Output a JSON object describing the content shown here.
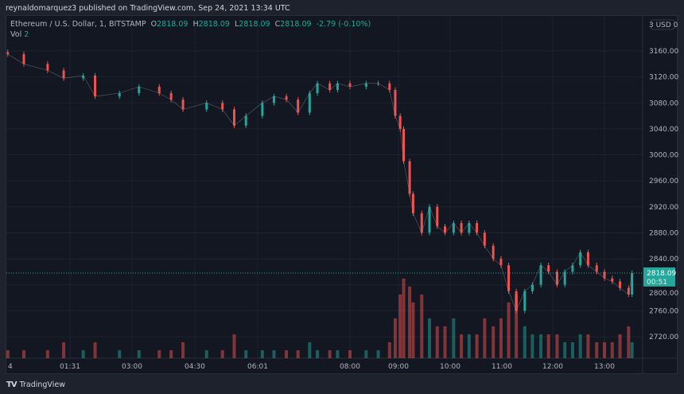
{
  "header": {
    "published": "reynaldomarquez3 published on TradingView.com, Sep 24, 2021 13:34 UTC"
  },
  "legend": {
    "symbol": "Ethereum / U.S. Dollar, 1, BITSTAMP",
    "o_label": "O",
    "o": "2818.09",
    "h_label": "H",
    "h": "2818.09",
    "l_label": "L",
    "l": "2818.09",
    "c_label": "C",
    "c": "2818.09",
    "change": "-2.79 (-0.10%)",
    "vol_label": "Vol",
    "vol": "2"
  },
  "price_axis": {
    "currency_badge": "3 USD 0",
    "last_price": "2818.09",
    "countdown": "00:51"
  },
  "brand": {
    "logo": "TV",
    "name": "TradingView"
  },
  "colors": {
    "up": "#26a69a",
    "down": "#ef5350",
    "background": "#131722",
    "grid": "#1e222d"
  },
  "chart_data": {
    "type": "candlestick",
    "title": "Ethereum / U.S. Dollar, 1, BITSTAMP",
    "ylim": [
      2695,
      3190
    ],
    "yticks": [
      "3160.00",
      "3120.00",
      "3080.00",
      "3040.00",
      "3000.00",
      "2960.00",
      "2920.00",
      "2880.00",
      "2840.00",
      "2800.00",
      "2760.00",
      "2720.00"
    ],
    "xticks": [
      "4",
      "01:31",
      "03:00",
      "04:30",
      "06:01",
      "08:00",
      "09:00",
      "10:00",
      "11:00",
      "12:00",
      "13:00"
    ],
    "grid": true,
    "last_price": 2818.09,
    "points": [
      [
        "00:02",
        3155,
        1
      ],
      [
        "00:25",
        3140,
        1
      ],
      [
        "00:59",
        3130,
        1
      ],
      [
        "01:22",
        3118,
        2
      ],
      [
        "01:50",
        3122,
        1
      ],
      [
        "02:07",
        3090,
        2
      ],
      [
        "02:42",
        3095,
        1
      ],
      [
        "03:10",
        3105,
        1
      ],
      [
        "03:39",
        3095,
        1
      ],
      [
        "03:56",
        3085,
        1
      ],
      [
        "04:13",
        3070,
        2
      ],
      [
        "04:47",
        3080,
        1
      ],
      [
        "05:10",
        3070,
        1
      ],
      [
        "05:27",
        3045,
        3
      ],
      [
        "05:44",
        3060,
        1
      ],
      [
        "06:07",
        3080,
        1
      ],
      [
        "06:22",
        3090,
        1
      ],
      [
        "06:38",
        3085,
        1
      ],
      [
        "06:53",
        3065,
        1
      ],
      [
        "07:08",
        3095,
        2
      ],
      [
        "07:18",
        3110,
        1
      ],
      [
        "07:34",
        3100,
        1
      ],
      [
        "07:44",
        3110,
        1
      ],
      [
        "08:00",
        3105,
        1
      ],
      [
        "08:20",
        3110,
        1
      ],
      [
        "08:35",
        3110,
        1
      ],
      [
        "08:49",
        3100,
        2
      ],
      [
        "08:56",
        3060,
        5
      ],
      [
        "09:02",
        3040,
        8
      ],
      [
        "09:06",
        2990,
        10
      ],
      [
        "09:13",
        2940,
        9
      ],
      [
        "09:17",
        2910,
        7
      ],
      [
        "09:27",
        2880,
        8
      ],
      [
        "09:36",
        2920,
        5
      ],
      [
        "09:45",
        2890,
        4
      ],
      [
        "09:54",
        2880,
        4
      ],
      [
        "10:04",
        2895,
        5
      ],
      [
        "10:13",
        2880,
        3
      ],
      [
        "10:22",
        2895,
        3
      ],
      [
        "10:31",
        2880,
        3
      ],
      [
        "10:40",
        2860,
        5
      ],
      [
        "10:50",
        2840,
        4
      ],
      [
        "10:59",
        2830,
        5
      ],
      [
        "11:08",
        2790,
        7
      ],
      [
        "11:17",
        2760,
        8
      ],
      [
        "11:27",
        2790,
        4
      ],
      [
        "11:36",
        2800,
        3
      ],
      [
        "11:46",
        2830,
        3
      ],
      [
        "11:55",
        2820,
        3
      ],
      [
        "12:05",
        2800,
        3
      ],
      [
        "12:14",
        2820,
        2
      ],
      [
        "12:23",
        2830,
        2
      ],
      [
        "12:32",
        2850,
        3
      ],
      [
        "12:41",
        2830,
        3
      ],
      [
        "12:51",
        2820,
        2
      ],
      [
        "13:00",
        2810,
        2
      ],
      [
        "13:09",
        2805,
        2
      ],
      [
        "13:18",
        2795,
        3
      ],
      [
        "13:28",
        2785,
        4
      ],
      [
        "13:32",
        2818.09,
        2
      ]
    ]
  }
}
